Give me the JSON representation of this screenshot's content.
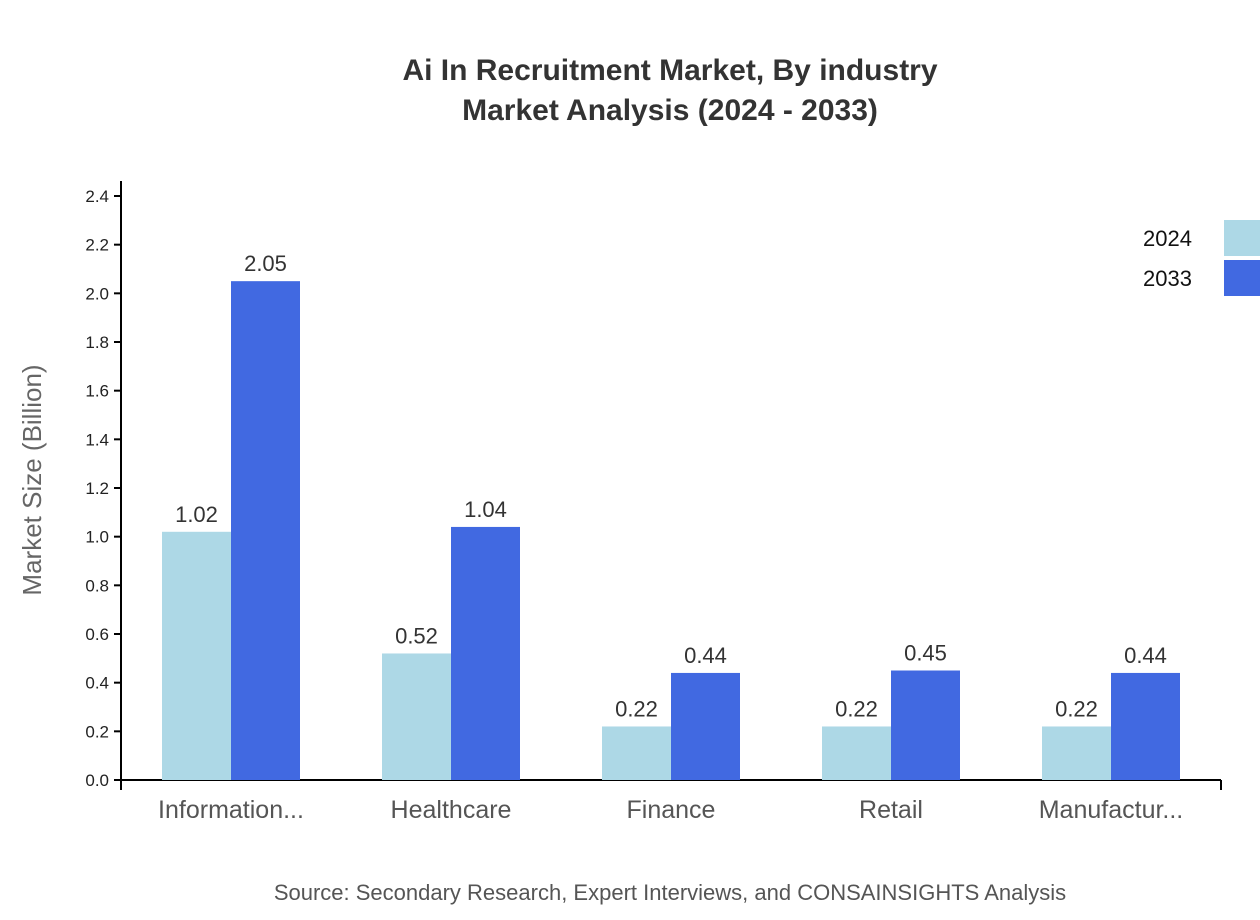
{
  "chart_data": {
    "type": "bar",
    "title": [
      "Ai In Recruitment Market, By industry",
      "Market Analysis (2024 - 2033)"
    ],
    "ylabel": "Market Size (Billion)",
    "xlabel": "",
    "ylim": [
      0,
      2.4
    ],
    "yticks": [
      "0.0",
      "0.2",
      "0.4",
      "0.6",
      "0.8",
      "1.0",
      "1.2",
      "1.4",
      "1.6",
      "1.8",
      "2.0",
      "2.2",
      "2.4"
    ],
    "categories": [
      "Information...",
      "Healthcare",
      "Finance",
      "Retail",
      "Manufactur..."
    ],
    "series": [
      {
        "name": "2024",
        "color": "#ADD8E6",
        "values": [
          1.02,
          0.52,
          0.22,
          0.22,
          0.22
        ]
      },
      {
        "name": "2033",
        "color": "#4169E1",
        "values": [
          2.05,
          1.04,
          0.44,
          0.45,
          0.44
        ]
      }
    ],
    "legend_position": "top-right",
    "grid": false,
    "source": "Source: Secondary Research, Expert Interviews, and CONSAINSIGHTS Analysis"
  }
}
